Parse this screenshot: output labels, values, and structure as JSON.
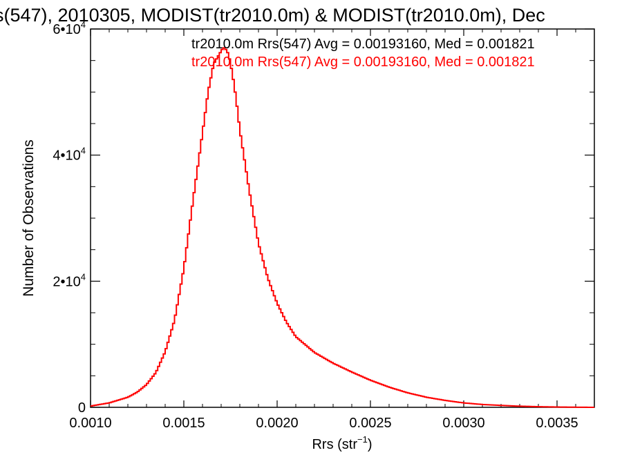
{
  "chart_data": {
    "type": "line",
    "title": "s(547), 2010305, MODIST(tr2010.0m) & MODIST(tr2010.0m), Dec",
    "xlabel": "Rrs (str",
    "xlabel_sup": "−1",
    "xlabel_end": ")",
    "ylabel": "Number of Observations",
    "xlim": [
      0.001,
      0.0037
    ],
    "ylim": [
      0,
      60000
    ],
    "x_ticks": [
      {
        "v": 0.001,
        "label": "0.0010"
      },
      {
        "v": 0.0015,
        "label": "0.0015"
      },
      {
        "v": 0.002,
        "label": "0.0020"
      },
      {
        "v": 0.0025,
        "label": "0.0025"
      },
      {
        "v": 0.003,
        "label": "0.0030"
      },
      {
        "v": 0.0035,
        "label": "0.0035"
      }
    ],
    "y_ticks": [
      {
        "v": 0,
        "base": "0",
        "exp": ""
      },
      {
        "v": 20000,
        "base": "2•10",
        "exp": "4"
      },
      {
        "v": 40000,
        "base": "4•10",
        "exp": "4"
      },
      {
        "v": 60000,
        "base": "6•10",
        "exp": "4"
      }
    ],
    "legend_placement": "top-right",
    "series": [
      {
        "name": "tr2010.0m Rrs(547) Avg = 0.00193160, Med = 0.001821",
        "color": "#000000"
      },
      {
        "name": "tr2010.0m Rrs(547) Avg = 0.00193160, Med = 0.001821",
        "color": "#ff0000"
      }
    ],
    "histogram": {
      "color": "#ff0000",
      "x": [
        0.001,
        0.0011,
        0.0012,
        0.00125,
        0.0013,
        0.00135,
        0.0014,
        0.00145,
        0.0015,
        0.00155,
        0.0016,
        0.00163,
        0.00166,
        0.00169,
        0.00171,
        0.00172,
        0.00174,
        0.00176,
        0.00178,
        0.0018,
        0.00185,
        0.0019,
        0.00195,
        0.002,
        0.00205,
        0.0021,
        0.0022,
        0.0023,
        0.0024,
        0.0025,
        0.0026,
        0.0027,
        0.0028,
        0.0029,
        0.003,
        0.0031,
        0.0032,
        0.0033,
        0.0034,
        0.0035,
        0.0036,
        0.0037
      ],
      "y": [
        200,
        700,
        1600,
        2400,
        3600,
        5500,
        8800,
        13800,
        22000,
        33000,
        43500,
        50000,
        54500,
        56000,
        57000,
        57000,
        56000,
        53000,
        49000,
        44000,
        34500,
        26000,
        20500,
        16500,
        13500,
        11200,
        8700,
        7000,
        5600,
        4300,
        3200,
        2300,
        1600,
        1100,
        700,
        450,
        300,
        180,
        100,
        50,
        20,
        0
      ]
    }
  }
}
